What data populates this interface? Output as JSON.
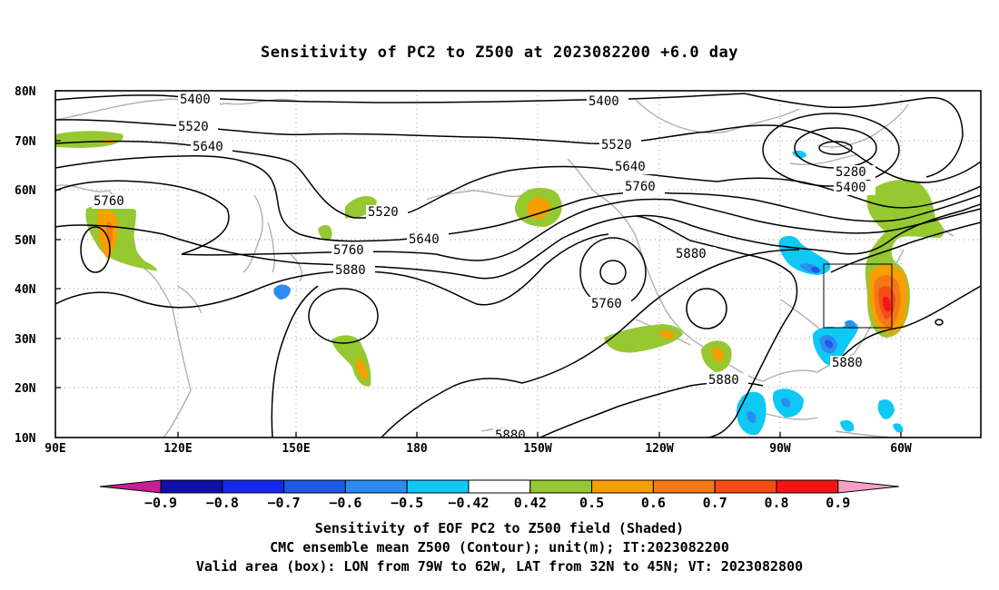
{
  "title": "Sensitivity of PC2 to Z500 at 2023082200 +6.0 day",
  "lat_labels": [
    "80N",
    "70N",
    "60N",
    "50N",
    "40N",
    "30N",
    "20N",
    "10N"
  ],
  "lon_labels": [
    "90E",
    "120E",
    "150E",
    "180",
    "150W",
    "120W",
    "90W",
    "60W"
  ],
  "contour_labels": {
    "c5400_w": "5400",
    "c5400_e": "5400",
    "c5520_w": "5520",
    "c5520_e": "5520",
    "c5640_w": "5640",
    "c5640_c": "5640",
    "c5640_e": "5640",
    "c5760_w": "5760",
    "c5760_c": "5760",
    "c5760_low": "5760",
    "c5760_e": "5760",
    "c5880_w": "5880",
    "c5880_e": "5880",
    "c5880_s1": "5880",
    "c5880_s2": "5880",
    "c5880_bot": "5880",
    "c5280": "5280",
    "c5400_ne": "5400",
    "c5520_small": "5520"
  },
  "colorbar": {
    "labels": [
      "-0.9",
      "-0.8",
      "-0.7",
      "-0.6",
      "-0.5",
      "-0.42",
      "0.42",
      "0.5",
      "0.6",
      "0.7",
      "0.8",
      "0.9"
    ],
    "colors": [
      "#1010a8",
      "#1428f0",
      "#1e5ae6",
      "#2c8cf0",
      "#0ec8f5",
      "#ffffff",
      "#96c832",
      "#f5a000",
      "#f57814",
      "#f54b14",
      "#f51414"
    ],
    "low_end_color": "#c81e96",
    "high_end_color": "#f5a0c8"
  },
  "footer": {
    "line1": "Sensitivity of EOF PC2 to Z500 field (Shaded)",
    "line2": "CMC ensemble mean Z500 (Contour); unit(m); IT:2023082200",
    "line3": "Valid area (box): LON from 79W to 62W, LAT from 32N to 45N; VT: 2023082800"
  }
}
